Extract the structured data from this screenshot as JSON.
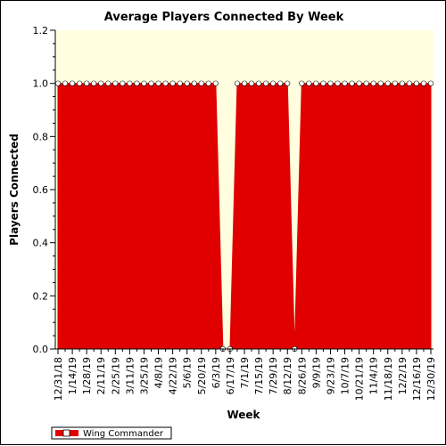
{
  "chart_data": {
    "type": "area",
    "title": "Average Players Connected By Week",
    "xlabel": "Week",
    "ylabel": "Players Connected",
    "ylim": [
      0,
      1.2
    ],
    "yticks": [
      "0.0",
      "0.2",
      "0.4",
      "0.6",
      "0.8",
      "1.0",
      "1.2"
    ],
    "grid": false,
    "legend_position": "bottom-left",
    "x": [
      "12/31/18",
      "1/7/19",
      "1/14/19",
      "1/21/19",
      "1/28/19",
      "2/4/19",
      "2/11/19",
      "2/18/19",
      "2/25/19",
      "3/4/19",
      "3/11/19",
      "3/18/19",
      "3/25/19",
      "4/1/19",
      "4/8/19",
      "4/15/19",
      "4/22/19",
      "4/29/19",
      "5/6/19",
      "5/13/19",
      "5/20/19",
      "5/27/19",
      "6/3/19",
      "6/10/19",
      "6/17/19",
      "6/24/19",
      "7/1/19",
      "7/8/19",
      "7/15/19",
      "7/22/19",
      "7/29/19",
      "8/5/19",
      "8/12/19",
      "8/19/19",
      "8/26/19",
      "9/2/19",
      "9/9/19",
      "9/16/19",
      "9/23/19",
      "9/30/19",
      "10/7/19",
      "10/14/19",
      "10/21/19",
      "10/28/19",
      "11/4/19",
      "11/11/19",
      "11/18/19",
      "11/25/19",
      "12/2/19",
      "12/9/19",
      "12/16/19",
      "12/23/19",
      "12/30/19"
    ],
    "x_tick_labels": [
      "12/31/18",
      "1/14/19",
      "1/28/19",
      "2/11/19",
      "2/25/19",
      "3/11/19",
      "3/25/19",
      "4/8/19",
      "4/22/19",
      "5/6/19",
      "5/20/19",
      "6/3/19",
      "6/17/19",
      "7/1/19",
      "7/15/19",
      "7/29/19",
      "8/12/19",
      "8/26/19",
      "9/9/19",
      "9/23/19",
      "10/7/19",
      "10/21/19",
      "11/4/19",
      "11/18/19",
      "12/2/19",
      "12/16/19",
      "12/30/19"
    ],
    "series": [
      {
        "name": "Wing Commander",
        "color": "#e00000",
        "values": [
          1,
          1,
          1,
          1,
          1,
          1,
          1,
          1,
          1,
          1,
          1,
          1,
          1,
          1,
          1,
          1,
          1,
          1,
          1,
          1,
          1,
          1,
          1,
          0,
          0,
          1,
          1,
          1,
          1,
          1,
          1,
          1,
          1,
          0,
          1,
          1,
          1,
          1,
          1,
          1,
          1,
          1,
          1,
          1,
          1,
          1,
          1,
          1,
          1,
          1,
          1,
          1,
          1
        ]
      }
    ]
  },
  "colors": {
    "plot_background": "#ffffe0",
    "series_fill": "#e00000",
    "marker_fill": "#ffffff",
    "axis": "#000000"
  }
}
